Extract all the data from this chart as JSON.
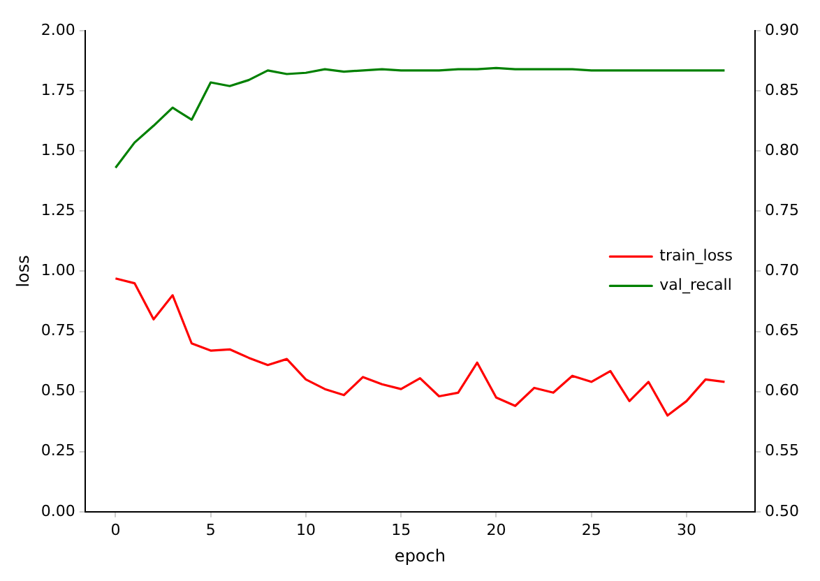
{
  "chart_data": {
    "type": "line",
    "xlabel": "epoch",
    "ylabel": "loss",
    "x": [
      0,
      1,
      2,
      3,
      4,
      5,
      6,
      7,
      8,
      9,
      10,
      11,
      12,
      13,
      14,
      15,
      16,
      17,
      18,
      19,
      20,
      21,
      22,
      23,
      24,
      25,
      26,
      27,
      28,
      29,
      30,
      31,
      32
    ],
    "series": [
      {
        "name": "train_loss",
        "color": "#ff0000",
        "values": [
          0.97,
          0.95,
          0.8,
          0.9,
          0.7,
          0.67,
          0.675,
          0.64,
          0.61,
          0.635,
          0.55,
          0.51,
          0.485,
          0.56,
          0.53,
          0.51,
          0.555,
          0.48,
          0.495,
          0.62,
          0.475,
          0.44,
          0.515,
          0.495,
          0.565,
          0.54,
          0.585,
          0.46,
          0.54,
          0.4,
          0.46,
          0.55,
          0.54
        ]
      },
      {
        "name": "val_recall",
        "color": "#008000",
        "axis": "y2",
        "values": [
          0.786,
          0.807,
          0.821,
          0.836,
          0.826,
          0.857,
          0.854,
          0.859,
          0.867,
          0.864,
          0.865,
          0.868,
          0.866,
          0.867,
          0.868,
          0.867,
          0.867,
          0.867,
          0.868,
          0.868,
          0.869,
          0.868,
          0.868,
          0.868,
          0.868,
          0.867,
          0.867,
          0.867,
          0.867,
          0.867,
          0.867,
          0.867,
          0.867
        ]
      }
    ],
    "xlim": [
      -1.6,
      33.6
    ],
    "xticks": [
      0,
      5,
      10,
      15,
      20,
      25,
      30
    ],
    "ylim": [
      0,
      2
    ],
    "yticks": [
      {
        "value": 0,
        "label": "0.00"
      },
      {
        "value": 0.25,
        "label": "0.25"
      },
      {
        "value": 0.5,
        "label": "0.50"
      },
      {
        "value": 0.75,
        "label": "0.75"
      },
      {
        "value": 1,
        "label": "1.00"
      },
      {
        "value": 1.25,
        "label": "1.25"
      },
      {
        "value": 1.5,
        "label": "1.50"
      },
      {
        "value": 1.75,
        "label": "1.75"
      },
      {
        "value": 2,
        "label": "2.00"
      }
    ],
    "y2lim": [
      0.5,
      0.9
    ],
    "y2ticks": [
      {
        "value": 0.5,
        "label": "0.50"
      },
      {
        "value": 0.55,
        "label": "0.55"
      },
      {
        "value": 0.6,
        "label": "0.60"
      },
      {
        "value": 0.65,
        "label": "0.65"
      },
      {
        "value": 0.7,
        "label": "0.70"
      },
      {
        "value": 0.75,
        "label": "0.75"
      },
      {
        "value": 0.8,
        "label": "0.80"
      },
      {
        "value": 0.85,
        "label": "0.85"
      },
      {
        "value": 0.9,
        "label": "0.90"
      }
    ],
    "legend": "right",
    "grid": false,
    "marker": "none",
    "line_style": "solid"
  }
}
